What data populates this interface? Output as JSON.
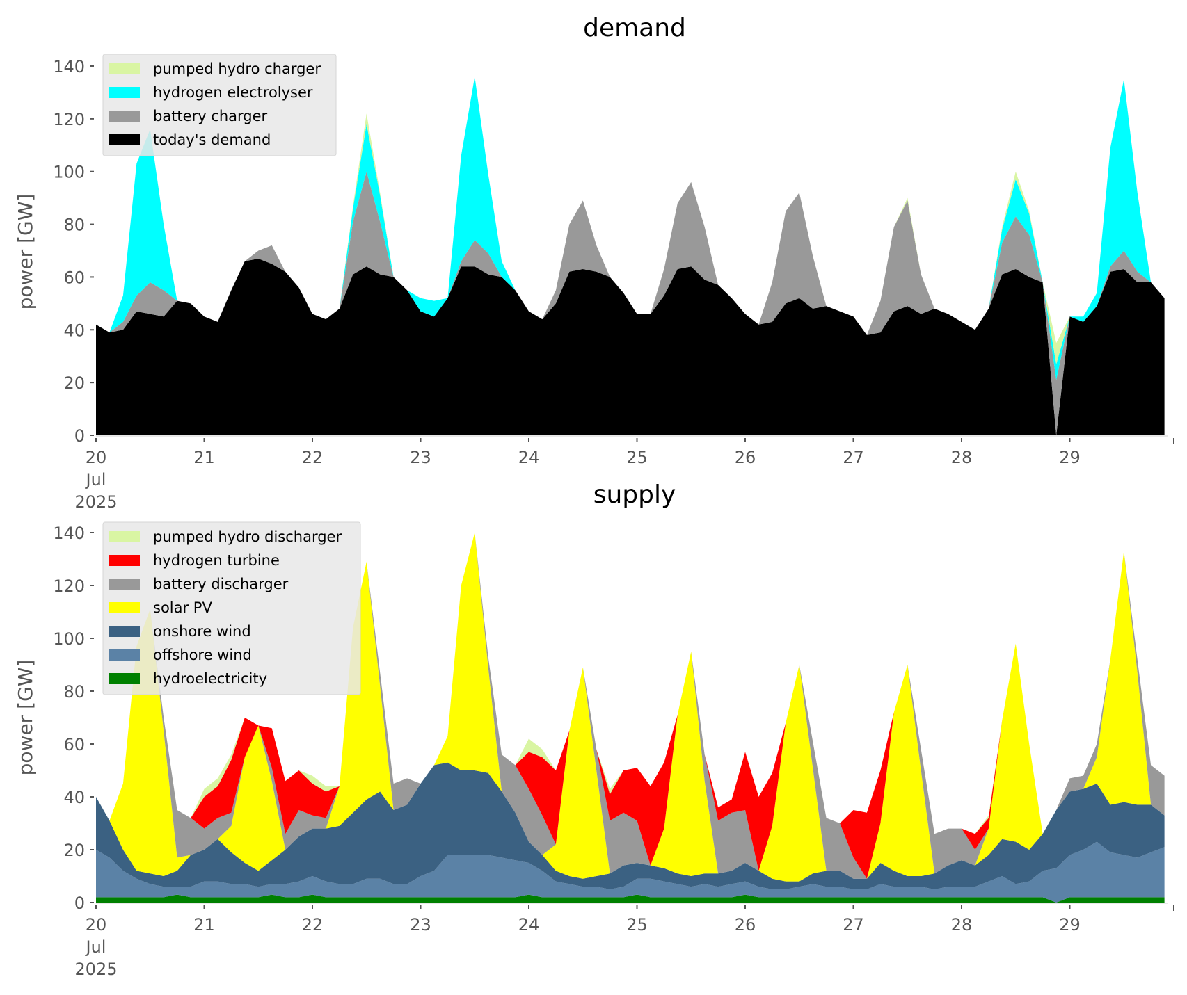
{
  "chart_data": [
    {
      "type": "area",
      "stacked": true,
      "title": "demand",
      "xlabel": "",
      "ylabel": "power [GW]",
      "ylim": [
        0,
        145
      ],
      "yticks": [
        0,
        20,
        40,
        60,
        80,
        100,
        120,
        140
      ],
      "xticks": [
        "20\nJul\n2025",
        "21",
        "22",
        "23",
        "24",
        "25",
        "26",
        "27",
        "28",
        "29"
      ],
      "x_start": "2025-07-20 00:00",
      "x_step_hours": 3,
      "grid": false,
      "legend": "top-left",
      "series": [
        {
          "name": "today's demand",
          "color": "#000000",
          "values": [
            42,
            39,
            40,
            47,
            46,
            45,
            51,
            50,
            45,
            43,
            55,
            66,
            67,
            65,
            62,
            56,
            46,
            44,
            48,
            61,
            64,
            61,
            60,
            55,
            47,
            45,
            52,
            64,
            64,
            61,
            60,
            55,
            47,
            44,
            50,
            62,
            63,
            62,
            60,
            54,
            46,
            46,
            53,
            63,
            64,
            59,
            57,
            52,
            46,
            42,
            43,
            50,
            52,
            48,
            49,
            47,
            45,
            38,
            39,
            47,
            49,
            46,
            48,
            46,
            43,
            40,
            48,
            61,
            63,
            60,
            58,
            0,
            45,
            43,
            49,
            62,
            63,
            58,
            58,
            52
          ]
        },
        {
          "name": "battery charger",
          "color": "#999999",
          "values": [
            0,
            0,
            3,
            6,
            12,
            10,
            0,
            0,
            0,
            0,
            0,
            0,
            3,
            7,
            0,
            0,
            0,
            0,
            0,
            20,
            36,
            20,
            0,
            0,
            0,
            0,
            0,
            2,
            10,
            8,
            0,
            0,
            0,
            0,
            5,
            18,
            26,
            10,
            0,
            0,
            0,
            0,
            10,
            25,
            32,
            20,
            0,
            0,
            0,
            0,
            15,
            35,
            40,
            20,
            0,
            0,
            0,
            0,
            12,
            32,
            40,
            15,
            0,
            0,
            0,
            0,
            0,
            12,
            20,
            16,
            0,
            21,
            0,
            0,
            0,
            2,
            7,
            4,
            0,
            0
          ]
        },
        {
          "name": "hydrogen electrolyser",
          "color": "#00ffff",
          "values": [
            0,
            0,
            10,
            50,
            58,
            25,
            0,
            0,
            0,
            0,
            0,
            0,
            0,
            0,
            0,
            0,
            0,
            0,
            0,
            5,
            18,
            10,
            0,
            0,
            5,
            6,
            0,
            40,
            62,
            30,
            6,
            0,
            0,
            0,
            0,
            0,
            0,
            0,
            0,
            0,
            0,
            0,
            0,
            0,
            0,
            0,
            0,
            0,
            0,
            0,
            0,
            0,
            0,
            0,
            0,
            0,
            0,
            0,
            0,
            0,
            0,
            0,
            0,
            0,
            0,
            0,
            0,
            5,
            14,
            8,
            0,
            6,
            0,
            2,
            5,
            45,
            65,
            30,
            0,
            0
          ]
        },
        {
          "name": "pumped hydro charger",
          "color": "#d9f5a3",
          "values": [
            0,
            0,
            0,
            0,
            0,
            0,
            0,
            0,
            0,
            0,
            0,
            0,
            0,
            0,
            0,
            0,
            0,
            0,
            0,
            1,
            4,
            1,
            0,
            0,
            0,
            0,
            0,
            0,
            0,
            0,
            0,
            0,
            0,
            0,
            0,
            0,
            0,
            0,
            0,
            0,
            0,
            0,
            0,
            0,
            0,
            0,
            0,
            0,
            0,
            0,
            0,
            0,
            0,
            0,
            0,
            0,
            0,
            0,
            0,
            0,
            1,
            0,
            0,
            0,
            0,
            0,
            0,
            1,
            3,
            1,
            0,
            8,
            0,
            0,
            0,
            0,
            0,
            0,
            0,
            0
          ]
        }
      ]
    },
    {
      "type": "area",
      "stacked": true,
      "title": "supply",
      "xlabel": "",
      "ylabel": "power [GW]",
      "ylim": [
        0,
        145
      ],
      "yticks": [
        0,
        20,
        40,
        60,
        80,
        100,
        120,
        140
      ],
      "xticks": [
        "20\nJul\n2025",
        "21",
        "22",
        "23",
        "24",
        "25",
        "26",
        "27",
        "28",
        "29"
      ],
      "x_start": "2025-07-20 00:00",
      "x_step_hours": 3,
      "grid": false,
      "legend": "top-left",
      "series": [
        {
          "name": "hydroelectricity",
          "color": "#008000",
          "values": [
            2,
            2,
            2,
            2,
            2,
            2,
            3,
            2,
            2,
            2,
            2,
            2,
            2,
            3,
            2,
            2,
            3,
            2,
            2,
            2,
            2,
            2,
            2,
            2,
            2,
            2,
            2,
            2,
            2,
            2,
            2,
            2,
            3,
            2,
            2,
            2,
            2,
            2,
            2,
            2,
            3,
            2,
            2,
            2,
            2,
            2,
            2,
            2,
            3,
            2,
            2,
            2,
            2,
            2,
            2,
            2,
            2,
            2,
            2,
            2,
            2,
            2,
            2,
            2,
            2,
            2,
            2,
            2,
            2,
            2,
            2,
            0,
            2,
            2,
            2,
            2,
            2,
            2,
            2,
            2
          ]
        },
        {
          "name": "offshore wind",
          "color": "#5b82a6",
          "values": [
            18,
            15,
            10,
            7,
            5,
            4,
            3,
            4,
            6,
            6,
            5,
            5,
            4,
            4,
            5,
            6,
            7,
            6,
            5,
            5,
            7,
            7,
            5,
            5,
            8,
            10,
            16,
            16,
            16,
            16,
            15,
            14,
            12,
            10,
            6,
            5,
            4,
            4,
            3,
            4,
            6,
            7,
            6,
            5,
            4,
            5,
            4,
            5,
            5,
            4,
            3,
            3,
            4,
            5,
            4,
            4,
            3,
            3,
            5,
            4,
            4,
            4,
            3,
            4,
            4,
            4,
            6,
            8,
            5,
            6,
            10,
            13,
            16,
            18,
            21,
            17,
            16,
            15,
            17,
            19
          ]
        },
        {
          "name": "onshore wind",
          "color": "#3b6182",
          "values": [
            20,
            14,
            8,
            3,
            4,
            4,
            6,
            12,
            12,
            16,
            12,
            8,
            6,
            9,
            13,
            17,
            18,
            20,
            22,
            27,
            30,
            33,
            28,
            30,
            35,
            40,
            35,
            32,
            32,
            31,
            25,
            18,
            8,
            6,
            4,
            3,
            3,
            4,
            6,
            8,
            6,
            5,
            5,
            4,
            4,
            4,
            5,
            5,
            7,
            6,
            4,
            3,
            2,
            4,
            6,
            6,
            4,
            4,
            8,
            6,
            4,
            4,
            6,
            8,
            10,
            8,
            10,
            14,
            16,
            12,
            14,
            22,
            24,
            23,
            22,
            18,
            20,
            20,
            18,
            12
          ]
        },
        {
          "name": "solar PV",
          "color": "#ffff00",
          "values": [
            0,
            0,
            25,
            85,
            100,
            55,
            5,
            0,
            0,
            0,
            10,
            40,
            55,
            30,
            0,
            0,
            0,
            0,
            15,
            70,
            90,
            40,
            0,
            0,
            0,
            0,
            10,
            70,
            90,
            40,
            0,
            0,
            0,
            0,
            10,
            55,
            80,
            40,
            0,
            0,
            0,
            0,
            15,
            60,
            85,
            35,
            0,
            0,
            0,
            0,
            20,
            60,
            82,
            40,
            0,
            0,
            0,
            0,
            15,
            60,
            80,
            40,
            0,
            0,
            0,
            0,
            10,
            45,
            75,
            40,
            0,
            0,
            0,
            0,
            10,
            55,
            95,
            50,
            0,
            0
          ]
        },
        {
          "name": "battery discharger",
          "color": "#999999",
          "values": [
            0,
            0,
            0,
            0,
            0,
            5,
            18,
            14,
            8,
            8,
            5,
            0,
            0,
            5,
            6,
            10,
            5,
            4,
            0,
            0,
            0,
            5,
            10,
            10,
            0,
            0,
            0,
            0,
            0,
            4,
            14,
            18,
            20,
            15,
            0,
            0,
            0,
            8,
            20,
            20,
            16,
            0,
            0,
            0,
            0,
            10,
            20,
            22,
            20,
            0,
            0,
            0,
            0,
            10,
            20,
            18,
            8,
            0,
            0,
            0,
            0,
            8,
            15,
            14,
            12,
            6,
            0,
            0,
            0,
            0,
            0,
            0,
            5,
            5,
            5,
            0,
            0,
            5,
            15,
            15
          ]
        },
        {
          "name": "hydrogen turbine",
          "color": "#ff0000",
          "values": [
            0,
            0,
            0,
            0,
            0,
            0,
            0,
            0,
            12,
            12,
            20,
            15,
            0,
            15,
            20,
            15,
            12,
            10,
            0,
            0,
            0,
            0,
            0,
            0,
            0,
            0,
            0,
            0,
            0,
            0,
            0,
            0,
            14,
            22,
            28,
            0,
            0,
            0,
            10,
            16,
            20,
            30,
            25,
            0,
            0,
            0,
            5,
            5,
            22,
            28,
            20,
            0,
            0,
            0,
            0,
            0,
            18,
            25,
            20,
            0,
            0,
            0,
            0,
            0,
            0,
            6,
            4,
            0,
            0,
            0,
            0,
            0,
            0,
            0,
            0,
            0,
            0,
            0,
            0,
            0
          ]
        },
        {
          "name": "pumped hydro discharger",
          "color": "#d9f5a3",
          "values": [
            0,
            0,
            0,
            0,
            0,
            0,
            0,
            0,
            3,
            3,
            2,
            0,
            0,
            0,
            0,
            0,
            3,
            2,
            0,
            0,
            0,
            0,
            0,
            0,
            0,
            0,
            0,
            0,
            0,
            0,
            0,
            0,
            5,
            3,
            0,
            0,
            0,
            0,
            2,
            0,
            0,
            0,
            0,
            0,
            0,
            0,
            0,
            0,
            0,
            0,
            0,
            0,
            0,
            0,
            0,
            0,
            0,
            0,
            0,
            0,
            0,
            0,
            0,
            0,
            0,
            0,
            1,
            0,
            0,
            0,
            0,
            0,
            0,
            0,
            0,
            0,
            0,
            0,
            0,
            0
          ]
        }
      ]
    }
  ]
}
